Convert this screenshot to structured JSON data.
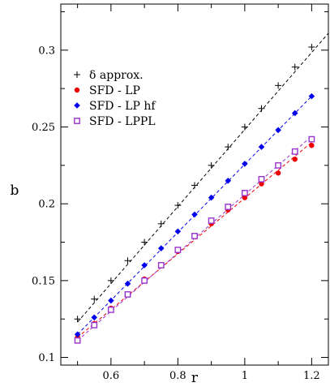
{
  "chart_data": {
    "type": "scatter",
    "xlabel": "r",
    "ylabel": "b",
    "xlim": [
      0.45,
      1.25
    ],
    "ylim": [
      0.095,
      0.33
    ],
    "x_ticks": [
      0.6,
      0.8,
      1.0,
      1.2
    ],
    "x_tick_labels": [
      "0.6",
      "0.8",
      "1",
      "1.2"
    ],
    "y_ticks": [
      0.1,
      0.15,
      0.2,
      0.25,
      0.3
    ],
    "y_tick_labels": [
      "0.1",
      "0.15",
      "0.2",
      "0.25",
      "0.3"
    ],
    "grid": false,
    "legend_position": "top-left",
    "series": [
      {
        "name": "δ approx.",
        "marker": "plus",
        "color": "#000000",
        "x": [
          0.5,
          0.55,
          0.6,
          0.65,
          0.7,
          0.75,
          0.8,
          0.85,
          0.9,
          0.95,
          1.0,
          1.05,
          1.1,
          1.15,
          1.2
        ],
        "y": [
          0.125,
          0.138,
          0.15,
          0.163,
          0.175,
          0.187,
          0.199,
          0.212,
          0.225,
          0.237,
          0.25,
          0.262,
          0.277,
          0.289,
          0.302
        ],
        "fit": [
          [
            0.5,
            0.123
          ],
          [
            1.25,
            0.311
          ]
        ]
      },
      {
        "name": "SFD - LP",
        "marker": "circle",
        "color": "#ee0000",
        "x": [
          0.5,
          0.55,
          0.6,
          0.65,
          0.7,
          0.75,
          0.8,
          0.85,
          0.9,
          0.95,
          1.0,
          1.05,
          1.1,
          1.15,
          1.2
        ],
        "y": [
          0.113,
          0.122,
          0.132,
          0.141,
          0.151,
          0.16,
          0.169,
          0.179,
          0.187,
          0.196,
          0.204,
          0.213,
          0.22,
          0.229,
          0.238
        ],
        "fit": [
          [
            0.5,
            0.113
          ],
          [
            1.2,
            0.24
          ]
        ]
      },
      {
        "name": "SFD - LP hf",
        "marker": "diamond",
        "color": "#0000ee",
        "x": [
          0.5,
          0.55,
          0.6,
          0.65,
          0.7,
          0.75,
          0.8,
          0.85,
          0.9,
          0.95,
          1.0,
          1.05,
          1.1,
          1.15,
          1.2
        ],
        "y": [
          0.115,
          0.126,
          0.137,
          0.148,
          0.16,
          0.171,
          0.182,
          0.193,
          0.204,
          0.215,
          0.226,
          0.237,
          0.248,
          0.259,
          0.27
        ],
        "fit": [
          [
            0.5,
            0.115
          ],
          [
            1.2,
            0.27
          ]
        ]
      },
      {
        "name": "SFD - LPPL",
        "marker": "square-open",
        "color": "#9933cc",
        "x": [
          0.5,
          0.55,
          0.6,
          0.65,
          0.7,
          0.75,
          0.8,
          0.85,
          0.9,
          0.95,
          1.0,
          1.05,
          1.1,
          1.15,
          1.2
        ],
        "y": [
          0.111,
          0.121,
          0.131,
          0.141,
          0.15,
          0.16,
          0.17,
          0.179,
          0.189,
          0.198,
          0.207,
          0.216,
          0.225,
          0.234,
          0.242
        ],
        "fit": [
          [
            0.5,
            0.111
          ],
          [
            1.2,
            0.244
          ]
        ]
      }
    ]
  }
}
